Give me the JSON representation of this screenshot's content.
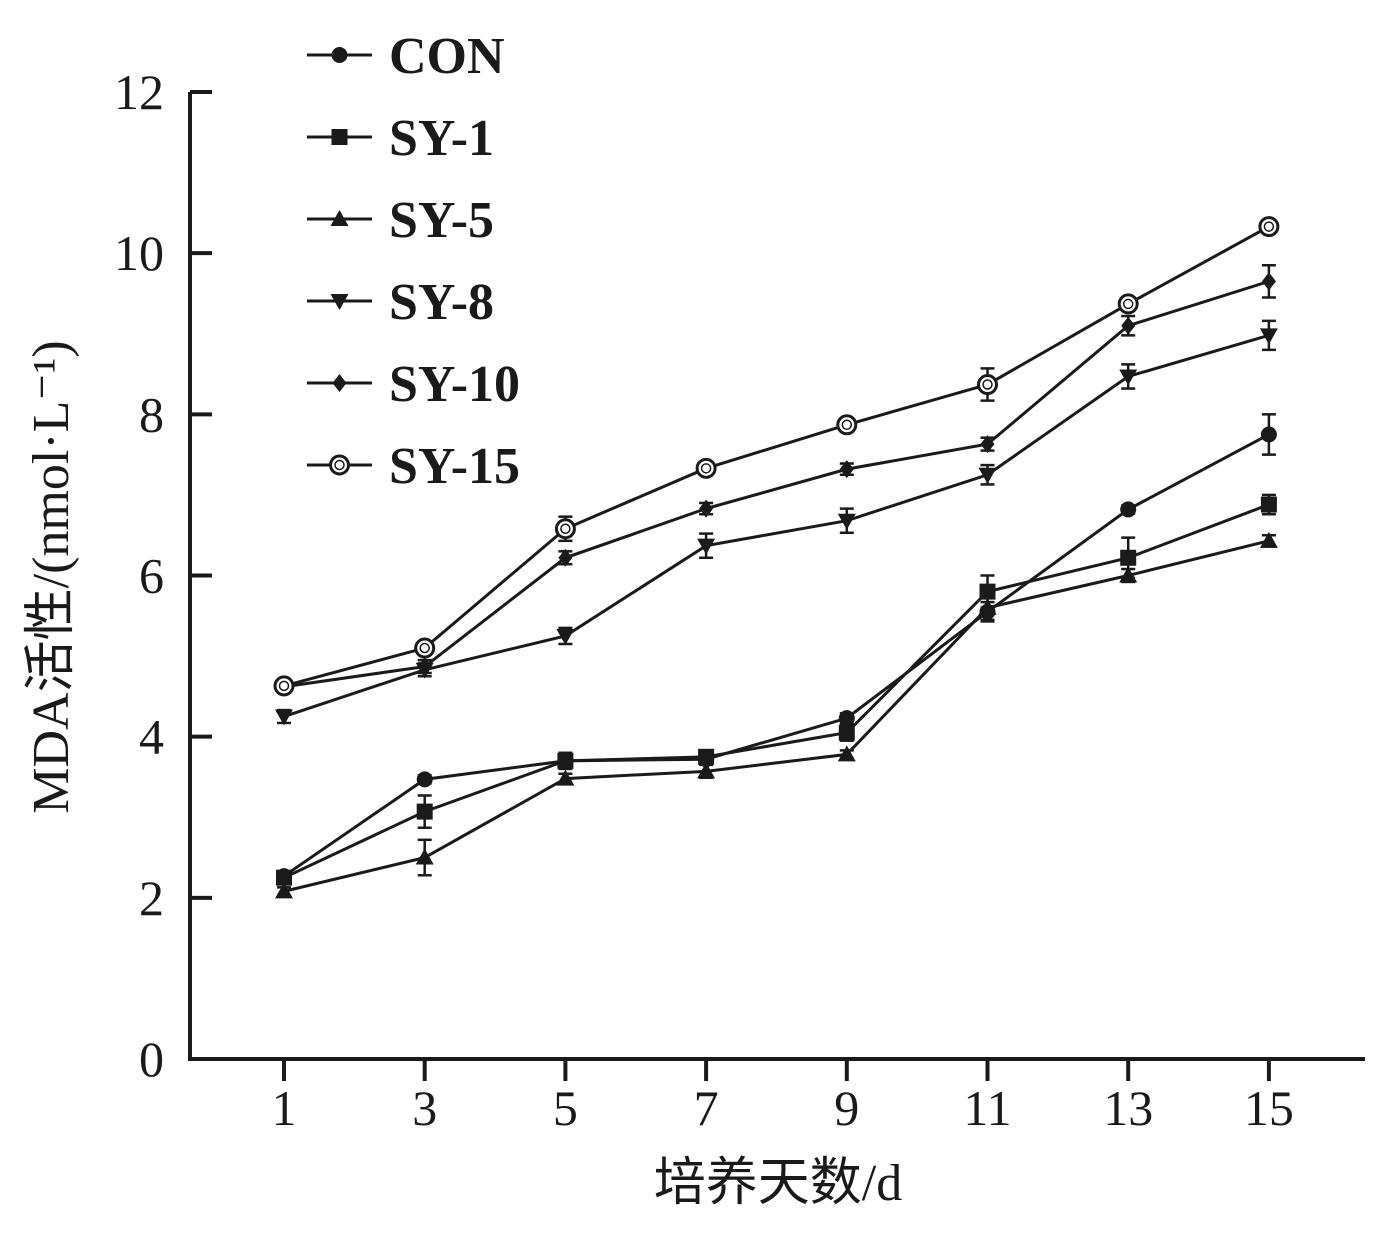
{
  "chart_data": {
    "type": "line",
    "xlabel": "培养天数/d",
    "ylabel": "MDA活性/(nmol·L⁻¹)",
    "x": [
      1,
      3,
      5,
      7,
      9,
      11,
      13,
      15
    ],
    "x_tick_labels": [
      "1",
      "3",
      "5",
      "7",
      "9",
      "11",
      "13",
      "15"
    ],
    "y_tick_labels": [
      "0",
      "2",
      "4",
      "6",
      "8",
      "10",
      "12"
    ],
    "ylim": [
      0,
      12
    ],
    "legend_position": "top-left",
    "series": [
      {
        "name": "CON",
        "marker": "filled-circle",
        "values": [
          2.27,
          3.47,
          3.7,
          3.72,
          4.23,
          5.55,
          6.82,
          7.75
        ],
        "errors": [
          0.05,
          0.05,
          0.08,
          0.06,
          0.06,
          0.12,
          0.05,
          0.25
        ]
      },
      {
        "name": "SY-1",
        "marker": "filled-square",
        "values": [
          2.25,
          3.07,
          3.7,
          3.75,
          4.05,
          5.8,
          6.22,
          6.88
        ],
        "errors": [
          0.05,
          0.2,
          0.1,
          0.07,
          0.1,
          0.2,
          0.25,
          0.12
        ]
      },
      {
        "name": "SY-5",
        "marker": "filled-triangle-up",
        "values": [
          2.08,
          2.5,
          3.48,
          3.57,
          3.78,
          5.6,
          6.0,
          6.43
        ],
        "errors": [
          0.05,
          0.22,
          0.06,
          0.08,
          0.05,
          0.15,
          0.08,
          0.07
        ]
      },
      {
        "name": "SY-8",
        "marker": "filled-triangle-down",
        "values": [
          4.25,
          4.83,
          5.25,
          6.37,
          6.68,
          7.25,
          8.47,
          8.98
        ],
        "errors": [
          0.08,
          0.08,
          0.1,
          0.15,
          0.15,
          0.12,
          0.15,
          0.18
        ]
      },
      {
        "name": "SY-10",
        "marker": "filled-diamond",
        "values": [
          4.62,
          4.87,
          6.22,
          6.83,
          7.32,
          7.63,
          9.1,
          9.65
        ],
        "errors": [
          0.05,
          0.08,
          0.08,
          0.07,
          0.07,
          0.08,
          0.12,
          0.2
        ]
      },
      {
        "name": "SY-15",
        "marker": "open-circle",
        "values": [
          4.63,
          5.1,
          6.58,
          7.33,
          7.87,
          8.37,
          9.37,
          10.33
        ],
        "errors": [
          0.06,
          0.08,
          0.15,
          0.06,
          0.05,
          0.2,
          0.05,
          0.06
        ]
      }
    ]
  }
}
